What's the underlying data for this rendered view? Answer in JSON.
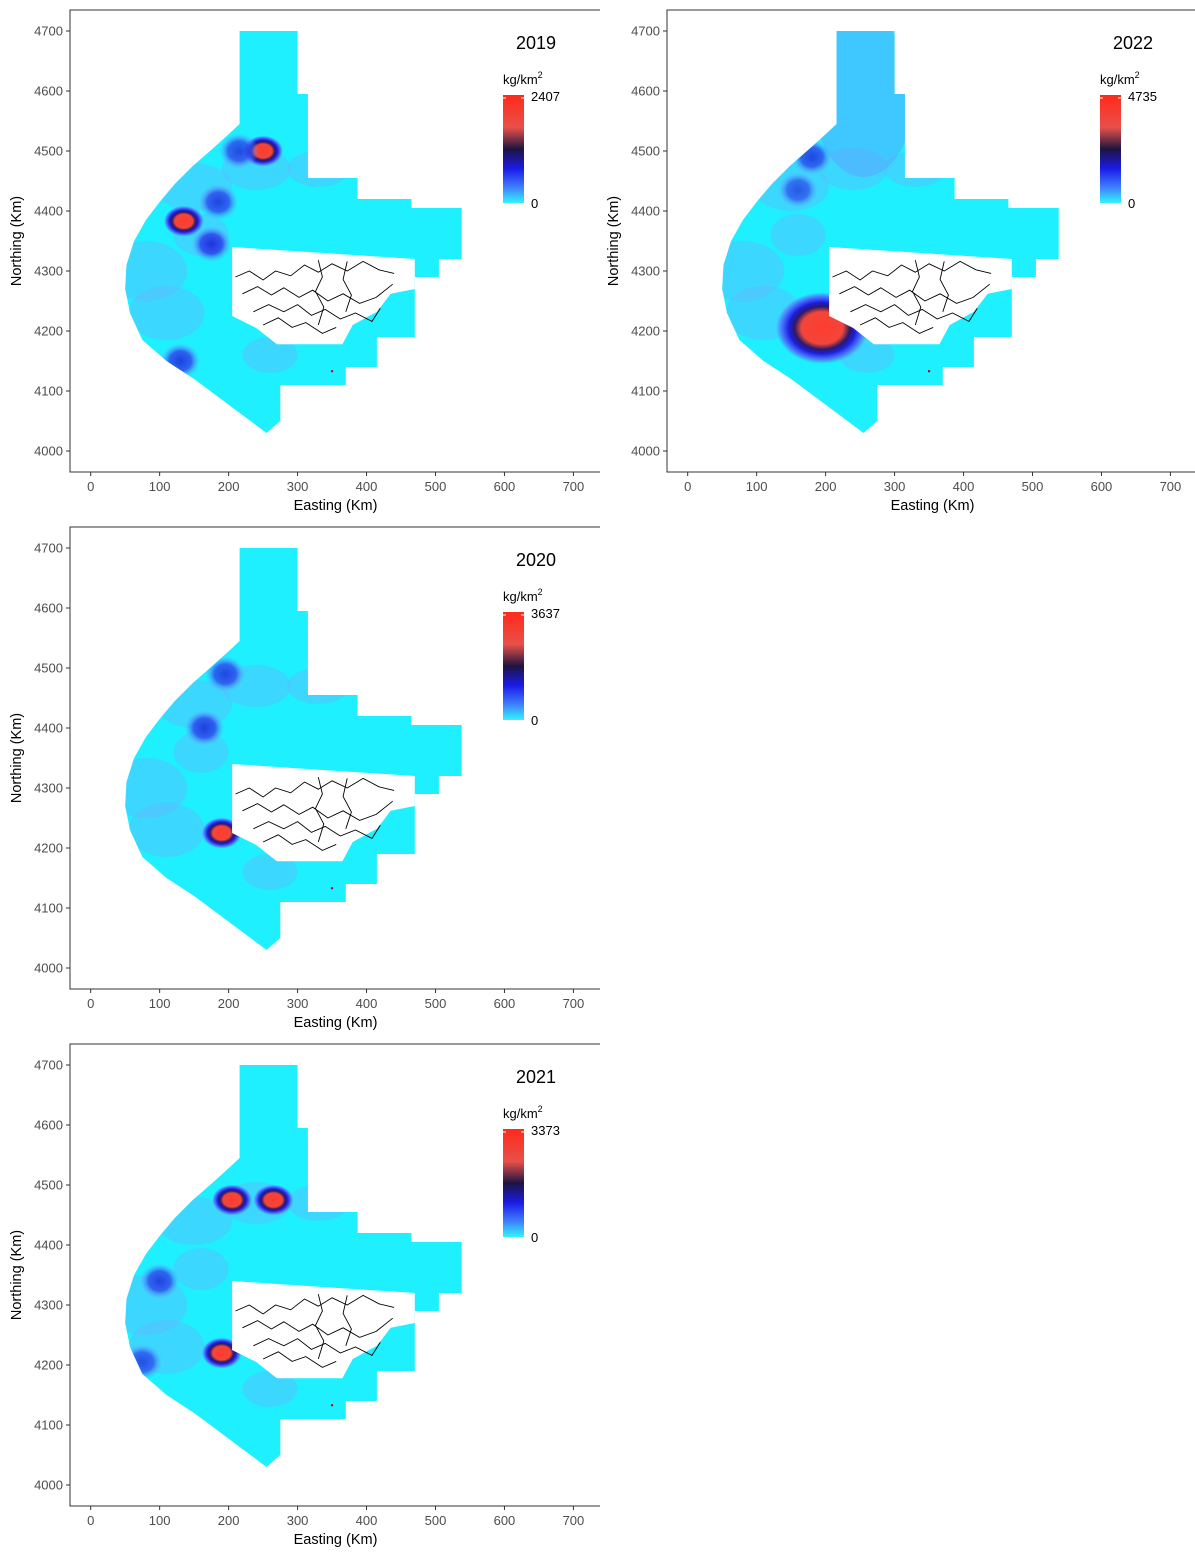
{
  "chart_data": [
    {
      "type": "heatmap",
      "panel": "top-left",
      "title": "2019",
      "xlabel": "Easting (Km)",
      "ylabel": "Northing (Km)",
      "xlim": [
        -30,
        740
      ],
      "ylim": [
        3965,
        4735
      ],
      "x_ticks": [
        "0",
        "100",
        "200",
        "300",
        "400",
        "500",
        "600",
        "700"
      ],
      "y_ticks": [
        "4000",
        "4100",
        "4200",
        "4300",
        "4400",
        "4500",
        "4600",
        "4700"
      ],
      "legend": {
        "unit": "kg/km",
        "unit_sup": "2",
        "max": "2407",
        "min": "0",
        "placement": "top-right"
      },
      "hotspots": [
        {
          "x": 250,
          "y": 4500,
          "level": 1.0
        },
        {
          "x": 135,
          "y": 4383,
          "level": 1.0
        },
        {
          "x": 130,
          "y": 4150,
          "level": 0.55
        },
        {
          "x": 175,
          "y": 4345,
          "level": 0.65
        },
        {
          "x": 185,
          "y": 4415,
          "level": 0.5
        },
        {
          "x": 215,
          "y": 4500,
          "level": 0.45
        }
      ]
    },
    {
      "type": "heatmap",
      "panel": "top-right",
      "title": "2022",
      "xlabel": "Easting (Km)",
      "ylabel": "Northing (Km)",
      "xlim": [
        -30,
        740
      ],
      "ylim": [
        3965,
        4735
      ],
      "x_ticks": [
        "0",
        "100",
        "200",
        "300",
        "400",
        "500",
        "600",
        "700"
      ],
      "y_ticks": [
        "4000",
        "4100",
        "4200",
        "4300",
        "4400",
        "4500",
        "4600",
        "4700"
      ],
      "legend": {
        "unit": "kg/km",
        "unit_sup": "2",
        "max": "4735",
        "min": "0",
        "placement": "top-right"
      },
      "hotspots": [
        {
          "x": 195,
          "y": 4205,
          "level": 1.0
        },
        {
          "x": 180,
          "y": 4490,
          "level": 0.5
        },
        {
          "x": 160,
          "y": 4435,
          "level": 0.3
        }
      ]
    },
    {
      "type": "heatmap",
      "panel": "middle-left",
      "title": "2020",
      "xlabel": "Easting (Km)",
      "ylabel": "Northing (Km)",
      "xlim": [
        -30,
        740
      ],
      "ylim": [
        3965,
        4735
      ],
      "x_ticks": [
        "0",
        "100",
        "200",
        "300",
        "400",
        "500",
        "600",
        "700"
      ],
      "y_ticks": [
        "4000",
        "4100",
        "4200",
        "4300",
        "4400",
        "4500",
        "4600",
        "4700"
      ],
      "legend": {
        "unit": "kg/km",
        "unit_sup": "2",
        "max": "3637",
        "min": "0",
        "placement": "top-right"
      },
      "hotspots": [
        {
          "x": 190,
          "y": 4225,
          "level": 1.0
        },
        {
          "x": 165,
          "y": 4400,
          "level": 0.55
        },
        {
          "x": 195,
          "y": 4490,
          "level": 0.5
        }
      ]
    },
    {
      "type": "heatmap",
      "panel": "bottom-left",
      "title": "2021",
      "xlabel": "Easting (Km)",
      "ylabel": "Northing (Km)",
      "xlim": [
        -30,
        740
      ],
      "ylim": [
        3965,
        4735
      ],
      "x_ticks": [
        "0",
        "100",
        "200",
        "300",
        "400",
        "500",
        "600",
        "700"
      ],
      "y_ticks": [
        "4000",
        "4100",
        "4200",
        "4300",
        "4400",
        "4500",
        "4600",
        "4700"
      ],
      "legend": {
        "unit": "kg/km",
        "unit_sup": "2",
        "max": "3373",
        "min": "0",
        "placement": "top-right"
      },
      "hotspots": [
        {
          "x": 205,
          "y": 4475,
          "level": 1.0
        },
        {
          "x": 265,
          "y": 4475,
          "level": 1.0
        },
        {
          "x": 190,
          "y": 4220,
          "level": 1.0
        },
        {
          "x": 100,
          "y": 4340,
          "level": 0.5
        },
        {
          "x": 75,
          "y": 4205,
          "level": 0.4
        }
      ]
    }
  ]
}
